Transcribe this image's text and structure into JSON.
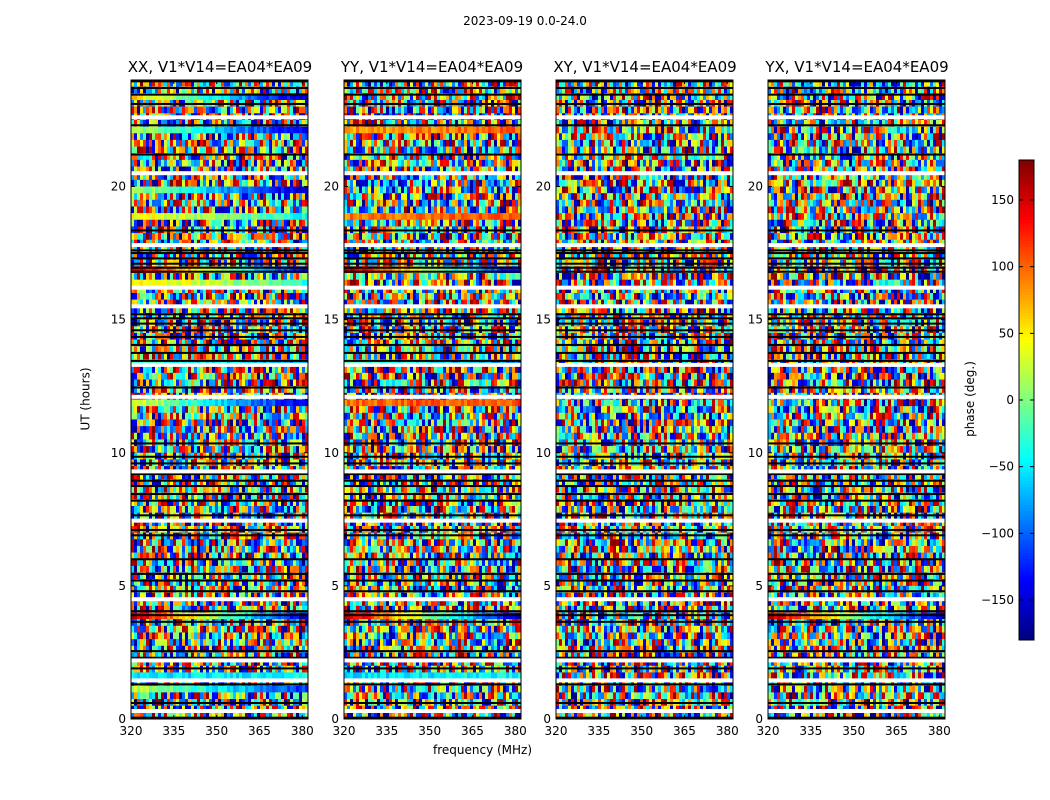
{
  "suptitle": "2023-09-19 0.0-24.0",
  "chart_data": {
    "type": "heatmap",
    "title": "2023-09-19 0.0-24.0",
    "xlabel": "frequency (MHz)",
    "ylabel": "UT (hours)",
    "xlim": [
      320,
      382
    ],
    "ylim": [
      0,
      24
    ],
    "xticks": [
      320,
      335,
      350,
      365,
      380
    ],
    "yticks": [
      0,
      5,
      10,
      15,
      20
    ],
    "colorbar": {
      "label": "phase (deg.)",
      "range": [
        -180,
        180
      ],
      "ticks": [
        150,
        100,
        50,
        0,
        -50,
        -100,
        -150
      ],
      "tick_labels": [
        "150",
        "100",
        "50",
        "0",
        "−50",
        "−100",
        "−150"
      ],
      "colormap": "jet"
    },
    "panels": [
      {
        "title": "XX, V1*V14=EA04*EA09",
        "pol": "XX",
        "structure": "strong"
      },
      {
        "title": "YY, V1*V14=EA04*EA09",
        "pol": "YY",
        "structure": "medium"
      },
      {
        "title": "XY, V1*V14=EA04*EA09",
        "pol": "XY",
        "structure": "noise"
      },
      {
        "title": "YX, V1*V14=EA04*EA09",
        "pol": "YX",
        "structure": "noise"
      }
    ],
    "flagged_white_bands_ut": [
      0.3,
      1.45,
      2.2,
      4.5,
      7.45,
      9.3,
      12.1,
      13.3,
      15.5,
      16.2,
      17.8,
      20.5,
      22.6
    ],
    "flagged_black_bands_ut": [
      0.05,
      0.6,
      1.3,
      1.9,
      2.3,
      2.55,
      3.65,
      3.9,
      4.05,
      4.8,
      5.2,
      5.45,
      6.0,
      6.9,
      7.1,
      7.65,
      8.2,
      8.45,
      8.75,
      8.95,
      9.2,
      9.6,
      9.85,
      10.35,
      12.45,
      13.45,
      13.75,
      14.05,
      14.35,
      14.6,
      14.85,
      15.05,
      15.2,
      16.8,
      16.95,
      17.1,
      17.3,
      17.5,
      17.6,
      18.35,
      21.2,
      22.3,
      23.1,
      23.45,
      23.7,
      23.95
    ],
    "coherent_strips": [
      {
        "ut": 23.4,
        "phase_start": 60,
        "phase_end": -160,
        "panels": [
          "XX"
        ]
      },
      {
        "ut": 22.2,
        "phase_start": 20,
        "phase_end": -150,
        "panels": [
          "XX"
        ]
      },
      {
        "ut": 22.2,
        "phase_start": 80,
        "phase_end": 100,
        "panels": [
          "YY"
        ]
      },
      {
        "ut": 19.8,
        "phase_start": 20,
        "phase_end": -160,
        "panels": [
          "XX"
        ]
      },
      {
        "ut": 18.8,
        "phase_start": 50,
        "phase_end": -40,
        "panels": [
          "XX"
        ]
      },
      {
        "ut": 18.8,
        "phase_start": 90,
        "phase_end": 110,
        "panels": [
          "YY"
        ]
      },
      {
        "ut": 16.8,
        "phase_start": 170,
        "phase_end": -150,
        "panels": [
          "XX",
          "YY"
        ]
      },
      {
        "ut": 16.3,
        "phase_start": 60,
        "phase_end": -30,
        "panels": [
          "XX"
        ]
      },
      {
        "ut": 13.4,
        "phase_start": -20,
        "phase_end": -80,
        "panels": [
          "XX",
          "YY"
        ]
      },
      {
        "ut": 11.95,
        "phase_start": 40,
        "phase_end": -150,
        "panels": [
          "XX"
        ]
      },
      {
        "ut": 11.95,
        "phase_start": 100,
        "phase_end": 110,
        "panels": [
          "YY"
        ]
      },
      {
        "ut": 3.95,
        "phase_start": 160,
        "phase_end": -160,
        "panels": [
          "XX",
          "YY",
          "YX"
        ]
      },
      {
        "ut": 1.55,
        "phase_start": -60,
        "phase_end": -40,
        "panels": [
          "XX",
          "YY"
        ]
      },
      {
        "ut": 1.05,
        "phase_start": 20,
        "phase_end": -120,
        "panels": [
          "XX"
        ]
      }
    ]
  }
}
